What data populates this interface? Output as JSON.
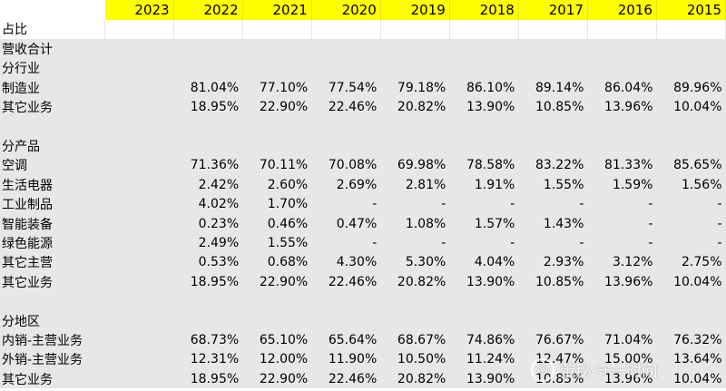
{
  "header": {
    "years": [
      "2023",
      "2022",
      "2021",
      "2020",
      "2019",
      "2018",
      "2017",
      "2016",
      "2015"
    ]
  },
  "rows": [
    {
      "label": "占比",
      "style": "plain",
      "values": [
        "",
        "",
        "",
        "",
        "",
        "",
        "",
        "",
        ""
      ]
    },
    {
      "label": "营收合计",
      "style": "gray",
      "values": [
        "",
        "",
        "",
        "",
        "",
        "",
        "",
        "",
        ""
      ]
    },
    {
      "label": "分行业",
      "style": "gray",
      "values": [
        "",
        "",
        "",
        "",
        "",
        "",
        "",
        "",
        ""
      ]
    },
    {
      "label": "制造业",
      "style": "gray",
      "values": [
        "",
        "81.04%",
        "77.10%",
        "77.54%",
        "79.18%",
        "86.10%",
        "89.14%",
        "86.04%",
        "89.96%"
      ]
    },
    {
      "label": "其它业务",
      "style": "gray",
      "values": [
        "",
        "18.95%",
        "22.90%",
        "22.46%",
        "20.82%",
        "13.90%",
        "10.85%",
        "13.96%",
        "10.04%"
      ]
    },
    {
      "label": "",
      "style": "gray",
      "values": [
        "",
        "",
        "",
        "",
        "",
        "",
        "",
        "",
        ""
      ]
    },
    {
      "label": "分产品",
      "style": "gray",
      "values": [
        "",
        "",
        "",
        "",
        "",
        "",
        "",
        "",
        ""
      ]
    },
    {
      "label": "空调",
      "style": "gray",
      "values": [
        "",
        "71.36%",
        "70.11%",
        "70.08%",
        "69.98%",
        "78.58%",
        "83.22%",
        "81.33%",
        "85.65%"
      ]
    },
    {
      "label": "生活电器",
      "style": "gray",
      "values": [
        "",
        "2.42%",
        "2.60%",
        "2.69%",
        "2.81%",
        "1.91%",
        "1.55%",
        "1.59%",
        "1.56%"
      ]
    },
    {
      "label": "工业制品",
      "style": "gray",
      "values": [
        "",
        "4.02%",
        "1.70%",
        "-",
        "-",
        "-",
        "-",
        "-",
        "-"
      ]
    },
    {
      "label": "智能装备",
      "style": "gray",
      "values": [
        "",
        "0.23%",
        "0.46%",
        "0.47%",
        "1.08%",
        "1.57%",
        "1.43%",
        "-",
        "-"
      ]
    },
    {
      "label": "绿色能源",
      "style": "gray",
      "values": [
        "",
        "2.49%",
        "1.55%",
        "-",
        "-",
        "-",
        "-",
        "-",
        "-"
      ]
    },
    {
      "label": "其它主营",
      "style": "gray",
      "values": [
        "",
        "0.53%",
        "0.68%",
        "4.30%",
        "5.30%",
        "4.04%",
        "2.93%",
        "3.12%",
        "2.75%"
      ]
    },
    {
      "label": "其它业务",
      "style": "gray",
      "values": [
        "",
        "18.95%",
        "22.90%",
        "22.46%",
        "20.82%",
        "13.90%",
        "10.85%",
        "13.96%",
        "10.04%"
      ]
    },
    {
      "label": "",
      "style": "gray",
      "values": [
        "",
        "",
        "",
        "",
        "",
        "",
        "",
        "",
        ""
      ]
    },
    {
      "label": "分地区",
      "style": "gray",
      "values": [
        "",
        "",
        "",
        "",
        "",
        "",
        "",
        "",
        ""
      ]
    },
    {
      "label": "内销-主营业务",
      "style": "gray",
      "values": [
        "",
        "68.73%",
        "65.10%",
        "65.64%",
        "68.67%",
        "74.86%",
        "76.67%",
        "71.04%",
        "76.32%"
      ]
    },
    {
      "label": "外销-主营业务",
      "style": "gray",
      "values": [
        "",
        "12.31%",
        "12.00%",
        "11.90%",
        "10.50%",
        "11.24%",
        "12.47%",
        "15.00%",
        "13.64%"
      ]
    },
    {
      "label": "其它业务",
      "style": "gray",
      "values": [
        "",
        "18.95%",
        "22.90%",
        "22.46%",
        "20.82%",
        "13.90%",
        "10.85%",
        "13.96%",
        "10.04%"
      ]
    }
  ],
  "watermark": {
    "icon": "wechat-logo-icon",
    "text": "董秘·守一时间"
  }
}
